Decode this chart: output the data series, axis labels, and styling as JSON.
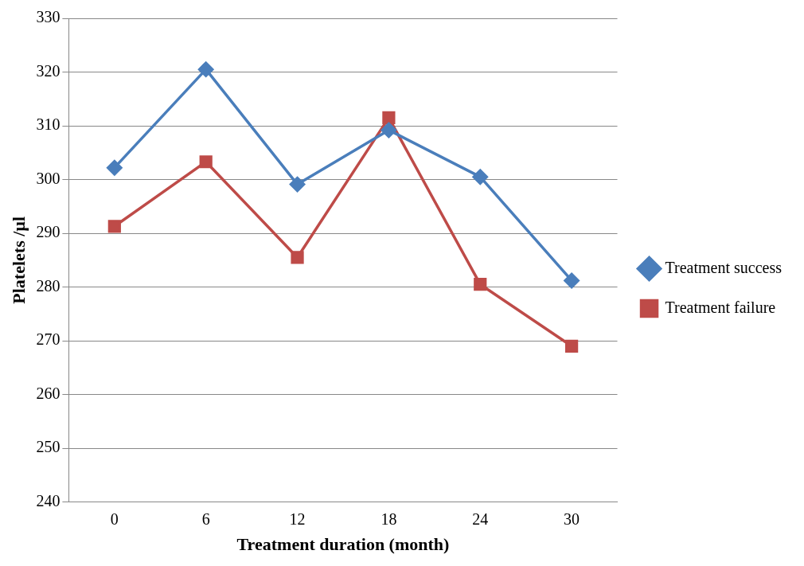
{
  "chart_data": {
    "type": "line",
    "xlabel": "Treatment duration (month)",
    "ylabel": "Platelets /µl",
    "categories": [
      "0",
      "6",
      "12",
      "18",
      "24",
      "30"
    ],
    "series": [
      {
        "name": "Treatment success",
        "color": "#4a7ebb",
        "marker": "diamond",
        "values": [
          302.2,
          320.5,
          299.1,
          309.2,
          300.5,
          281.2
        ]
      },
      {
        "name": "Treatment failure",
        "color": "#be4b48",
        "marker": "square",
        "values": [
          291.3,
          303.3,
          285.5,
          311.5,
          280.5,
          269
        ]
      }
    ],
    "ylim": [
      240,
      330
    ],
    "yticks": [
      240,
      250,
      260,
      270,
      280,
      290,
      300,
      310,
      320,
      330
    ],
    "grid": "y",
    "legend": "right"
  }
}
